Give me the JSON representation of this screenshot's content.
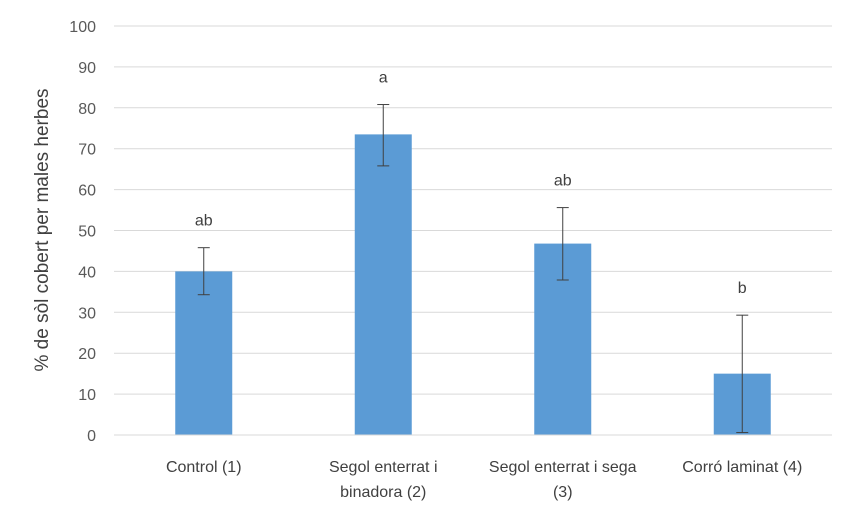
{
  "chart_data": {
    "type": "bar",
    "title": "",
    "xlabel": "",
    "ylabel": "% de sòl cobert per males herbes",
    "ylim": [
      0,
      100
    ],
    "yticks": [
      0,
      10,
      20,
      30,
      40,
      50,
      60,
      70,
      80,
      90,
      100
    ],
    "grid": true,
    "legend": "none",
    "bar_color": "#5B9BD5",
    "categories": [
      [
        "Control (1)"
      ],
      [
        "Segol enterrat i",
        "binadora (2)"
      ],
      [
        "Segol enterrat i sega",
        "(3)"
      ],
      [
        "Corró laminat (4)"
      ]
    ],
    "values": [
      40,
      73.5,
      46.8,
      15
    ],
    "error_low": [
      34.3,
      65.8,
      37.9,
      0.6
    ],
    "error_high": [
      45.8,
      80.8,
      55.6,
      29.3
    ],
    "significance_labels": [
      "ab",
      "a",
      "ab",
      "b"
    ]
  }
}
